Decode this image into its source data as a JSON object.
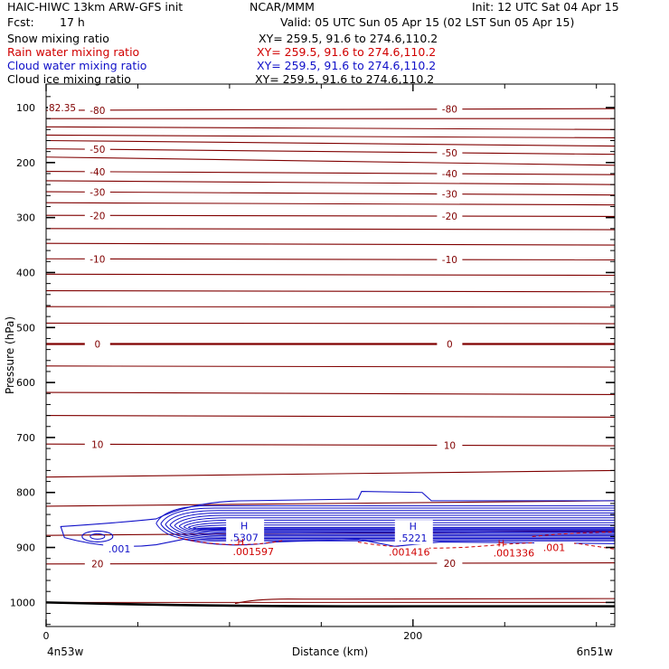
{
  "header": {
    "title_left": "HAIC-HIWC 13km ARW-GFS init",
    "org": "NCAR/MMM",
    "init": "Init: 12 UTC Sat 04 Apr 15",
    "fcst_label": "Fcst:",
    "fcst_value": "17 h",
    "valid": "Valid: 05 UTC Sun 05 Apr 15 (02 LST Sun 05 Apr 15)"
  },
  "legend": [
    {
      "name": "Snow mixing ratio",
      "xy": "XY= 259.5, 91.6 to 274.6,110.2",
      "color": "#000000"
    },
    {
      "name": "Rain water mixing ratio",
      "xy": "XY= 259.5, 91.6 to 274.6,110.2",
      "color": "#d00000"
    },
    {
      "name": "Cloud water mixing ratio",
      "xy": "XY= 259.5, 91.6 to 274.6,110.2",
      "color": "#1010c8"
    },
    {
      "name": "Cloud ice mixing ratio",
      "xy": "XY= 259.5, 91.6 to 274.6,110.2",
      "color": "#000000"
    }
  ],
  "chart_data": {
    "type": "line",
    "title": "",
    "xlabel": "Distance (km)",
    "ylabel": "Pressure (hPa)",
    "xlim": [
      0,
      310
    ],
    "ylim": [
      1050,
      70
    ],
    "x_ticks": [
      0,
      200
    ],
    "x_minor_ticks": [
      50,
      100,
      150,
      250,
      300
    ],
    "y_ticks": [
      100,
      200,
      300,
      400,
      500,
      600,
      700,
      800,
      900,
      1000
    ],
    "x_start_label": "4n53w",
    "x_end_label": "6n51w",
    "temperature_contours": {
      "color": "#800000",
      "interval": 5,
      "levels": [
        {
          "label": "-80",
          "p_left": 105,
          "p_right": 102
        },
        {
          "label": "",
          "p_left": 120,
          "p_right": 120
        },
        {
          "label": "",
          "p_left": 135,
          "p_right": 140
        },
        {
          "label": "",
          "p_left": 150,
          "p_right": 155
        },
        {
          "label": "",
          "p_left": 160,
          "p_right": 170
        },
        {
          "label": "-50",
          "p_left": 175,
          "p_right": 185
        },
        {
          "label": "",
          "p_left": 190,
          "p_right": 205
        },
        {
          "label": "-40",
          "p_left": 216,
          "p_right": 222
        },
        {
          "label": "",
          "p_left": 233,
          "p_right": 240
        },
        {
          "label": "-30",
          "p_left": 253,
          "p_right": 259
        },
        {
          "label": "",
          "p_left": 273,
          "p_right": 277
        },
        {
          "label": "-20",
          "p_left": 296,
          "p_right": 298
        },
        {
          "label": "",
          "p_left": 320,
          "p_right": 322
        },
        {
          "label": "",
          "p_left": 347,
          "p_right": 350
        },
        {
          "label": "-10",
          "p_left": 375,
          "p_right": 377
        },
        {
          "label": "",
          "p_left": 403,
          "p_right": 405
        },
        {
          "label": "",
          "p_left": 433,
          "p_right": 435
        },
        {
          "label": "",
          "p_left": 462,
          "p_right": 463
        },
        {
          "label": "",
          "p_left": 492,
          "p_right": 493
        },
        {
          "label": "0",
          "p_left": 530,
          "p_right": 530,
          "bold": true
        },
        {
          "label": "",
          "p_left": 570,
          "p_right": 572
        },
        {
          "label": "",
          "p_left": 618,
          "p_right": 622
        },
        {
          "label": "",
          "p_left": 660,
          "p_right": 663
        },
        {
          "label": "10",
          "p_left": 712,
          "p_right": 715
        },
        {
          "label": "",
          "p_left": 772,
          "p_right": 760
        },
        {
          "label": "",
          "p_left": 825,
          "p_right": 815
        },
        {
          "label": "",
          "p_left": 878,
          "p_right": 870
        },
        {
          "label": "20",
          "p_left": 930,
          "p_right": 928
        },
        {
          "label": "",
          "p_left": 1000,
          "p_right": 1000
        }
      ]
    },
    "cloud_water_maxima": [
      {
        "label": "H",
        "value": ".5307",
        "x": 108,
        "p": 872
      },
      {
        "label": "H",
        "value": ".5221",
        "x": 200,
        "p": 873
      }
    ],
    "cloud_water_minimum": {
      "value": ".001",
      "x": 40,
      "p": 902
    },
    "rain_water_values": [
      {
        "label": "H",
        "value": ".001597",
        "x": 113,
        "p": 896
      },
      {
        "label": "",
        "value": ".001416",
        "x": 198,
        "p": 897
      },
      {
        "label": "H",
        "value": ".001336",
        "x": 255,
        "p": 898
      },
      {
        "label": "",
        "value": ".001",
        "x": 277,
        "p": 888
      }
    ],
    "upper_left_label": "82.35",
    "surface_pressure_left": 1000,
    "surface_pressure_right": 1007
  }
}
